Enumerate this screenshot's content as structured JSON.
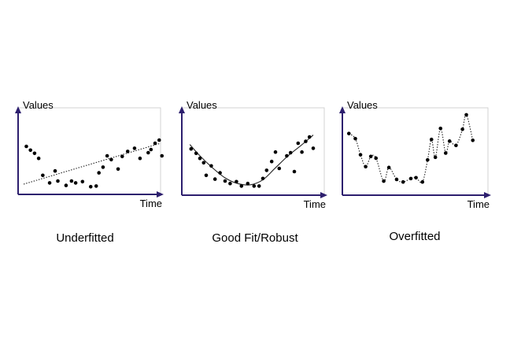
{
  "chart_data": [
    {
      "type": "scatter",
      "caption": "Underfitted",
      "ylabel": "Values",
      "xlabel": "Time",
      "xlim": [
        0,
        10
      ],
      "ylim": [
        0,
        10
      ],
      "axis_color": "#2d1f6e",
      "point_color": "#000000",
      "fit": {
        "style": "dotted",
        "kind": "linear"
      },
      "points": [
        [
          0.2,
          7.0
        ],
        [
          0.5,
          6.4
        ],
        [
          0.8,
          5.9
        ],
        [
          1.1,
          5.1
        ],
        [
          1.4,
          2.4
        ],
        [
          1.9,
          1.2
        ],
        [
          2.3,
          3.1
        ],
        [
          2.5,
          1.5
        ],
        [
          3.1,
          0.8
        ],
        [
          3.5,
          1.5
        ],
        [
          3.8,
          1.2
        ],
        [
          4.3,
          1.4
        ],
        [
          4.9,
          0.6
        ],
        [
          5.3,
          0.7
        ],
        [
          5.5,
          2.8
        ],
        [
          5.8,
          3.7
        ],
        [
          6.1,
          5.5
        ],
        [
          6.4,
          4.9
        ],
        [
          6.9,
          3.4
        ],
        [
          7.2,
          5.4
        ],
        [
          7.6,
          6.2
        ],
        [
          8.1,
          6.7
        ],
        [
          8.5,
          5.1
        ],
        [
          9.1,
          6.0
        ],
        [
          9.3,
          6.5
        ],
        [
          9.6,
          7.5
        ],
        [
          9.9,
          8.0
        ],
        [
          10.1,
          5.5
        ]
      ],
      "fit_points": [
        [
          0,
          1
        ],
        [
          10,
          7.5
        ]
      ]
    },
    {
      "type": "scatter",
      "caption": "Good Fit/Robust",
      "ylabel": "Values",
      "xlabel": "Time",
      "xlim": [
        0,
        10
      ],
      "ylim": [
        0,
        10
      ],
      "axis_color": "#2d1f6e",
      "point_color": "#000000",
      "fit": {
        "style": "solid",
        "kind": "curve"
      },
      "points": [
        [
          0.3,
          6.6
        ],
        [
          0.7,
          5.9
        ],
        [
          1.0,
          5.1
        ],
        [
          1.3,
          4.4
        ],
        [
          1.5,
          2.4
        ],
        [
          1.9,
          3.9
        ],
        [
          2.2,
          1.8
        ],
        [
          2.6,
          2.8
        ],
        [
          3.0,
          1.5
        ],
        [
          3.4,
          1.1
        ],
        [
          3.9,
          1.4
        ],
        [
          4.3,
          0.7
        ],
        [
          4.8,
          1.1
        ],
        [
          5.3,
          0.7
        ],
        [
          5.7,
          0.7
        ],
        [
          6.0,
          1.9
        ],
        [
          6.3,
          3.2
        ],
        [
          6.7,
          4.6
        ],
        [
          7.0,
          6.1
        ],
        [
          7.3,
          3.5
        ],
        [
          7.9,
          5.5
        ],
        [
          8.2,
          6.0
        ],
        [
          8.5,
          3.0
        ],
        [
          8.8,
          7.5
        ],
        [
          9.1,
          6.1
        ],
        [
          9.4,
          7.8
        ],
        [
          9.7,
          8.5
        ],
        [
          10.0,
          6.7
        ]
      ],
      "fit_points": [
        [
          0.2,
          7.3
        ],
        [
          1.0,
          5.5
        ],
        [
          2.0,
          3.6
        ],
        [
          3.0,
          2.0
        ],
        [
          4.0,
          1.1
        ],
        [
          5.0,
          0.9
        ],
        [
          6.0,
          1.7
        ],
        [
          7.0,
          3.6
        ],
        [
          8.0,
          5.5
        ],
        [
          9.0,
          7.1
        ],
        [
          10.0,
          8.8
        ]
      ]
    },
    {
      "type": "scatter",
      "caption": "Overfitted",
      "ylabel": "Values",
      "xlabel": "Time",
      "xlim": [
        0,
        10
      ],
      "ylim": [
        0,
        10
      ],
      "axis_color": "#2d1f6e",
      "point_color": "#000000",
      "fit": {
        "style": "dotted",
        "kind": "interpolating"
      },
      "points": [
        [
          0.2,
          6.7
        ],
        [
          0.7,
          6.1
        ],
        [
          1.1,
          4.2
        ],
        [
          1.5,
          2.8
        ],
        [
          1.9,
          4.0
        ],
        [
          2.3,
          3.8
        ],
        [
          2.9,
          1.1
        ],
        [
          3.3,
          2.7
        ],
        [
          3.9,
          1.3
        ],
        [
          4.4,
          1.0
        ],
        [
          5.0,
          1.4
        ],
        [
          5.4,
          1.5
        ],
        [
          5.9,
          1.0
        ],
        [
          6.3,
          3.6
        ],
        [
          6.6,
          6.0
        ],
        [
          6.9,
          3.9
        ],
        [
          7.3,
          7.3
        ],
        [
          7.7,
          4.4
        ],
        [
          8.0,
          5.8
        ],
        [
          8.5,
          5.3
        ],
        [
          9.0,
          7.2
        ],
        [
          9.3,
          8.9
        ],
        [
          9.8,
          5.9
        ]
      ]
    }
  ]
}
